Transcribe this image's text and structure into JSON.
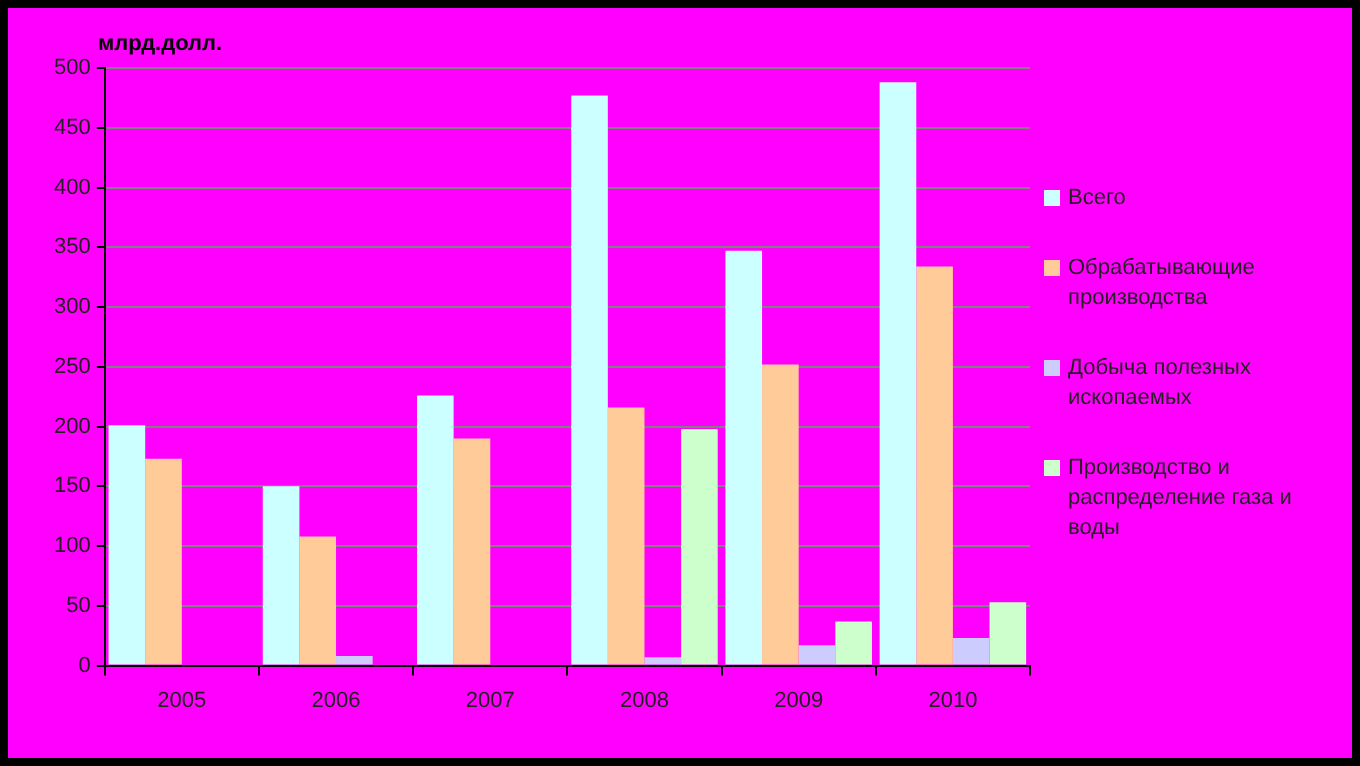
{
  "chart_data": {
    "type": "bar",
    "ylabel": "млрд.долл.",
    "categories": [
      "2005",
      "2006",
      "2007",
      "2008",
      "2009",
      "2010"
    ],
    "series": [
      {
        "name": "Всего",
        "color": "#ccffff",
        "values": [
          201,
          150,
          226,
          477,
          347,
          488
        ]
      },
      {
        "name": "Обрабатывающие производства",
        "color": "#ffcc99",
        "values": [
          173,
          108,
          190,
          216,
          252,
          334
        ]
      },
      {
        "name": "Добыча полезных ископаемых",
        "color": "#ccccff",
        "values": [
          null,
          8,
          null,
          7,
          17,
          23
        ]
      },
      {
        "name": "Производство и распределение газа и воды",
        "color": "#ccffcc",
        "values": [
          null,
          null,
          null,
          198,
          37,
          53
        ]
      }
    ],
    "ylim": [
      0,
      500
    ],
    "yticks": [
      0,
      50,
      100,
      150,
      200,
      250,
      300,
      350,
      400,
      450,
      500
    ],
    "grid": "y",
    "legend": "right"
  }
}
